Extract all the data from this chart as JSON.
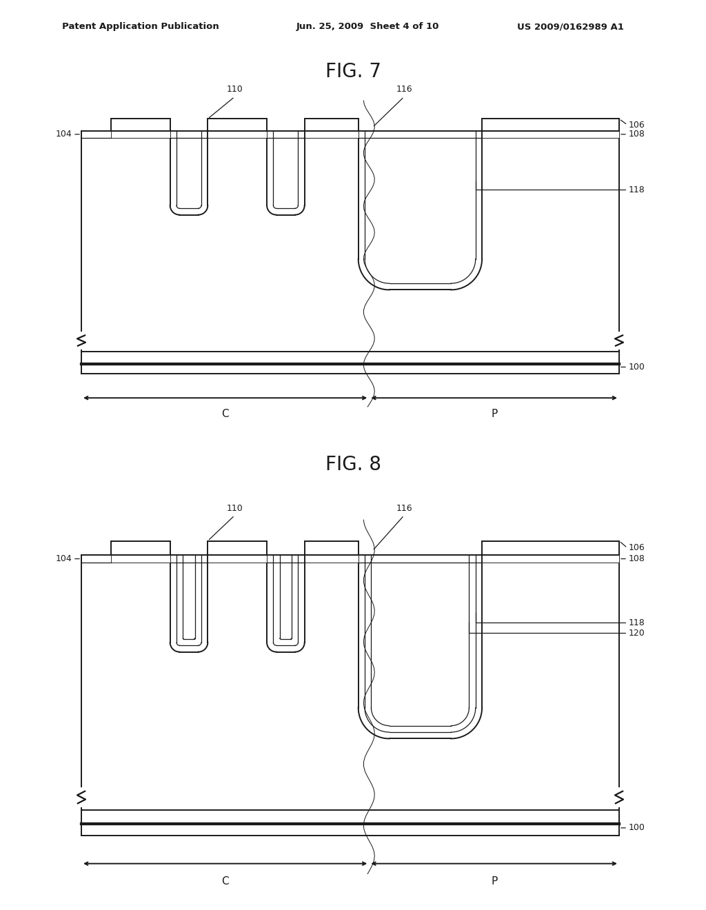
{
  "bg_color": "#ffffff",
  "line_color": "#1a1a1a",
  "header_left": "Patent Application Publication",
  "header_mid": "Jun. 25, 2009  Sheet 4 of 10",
  "header_right": "US 2009/0162989 A1",
  "fig7_title": "FIG. 7",
  "fig8_title": "FIG. 8",
  "lw": 1.4,
  "thin_lw": 0.9
}
